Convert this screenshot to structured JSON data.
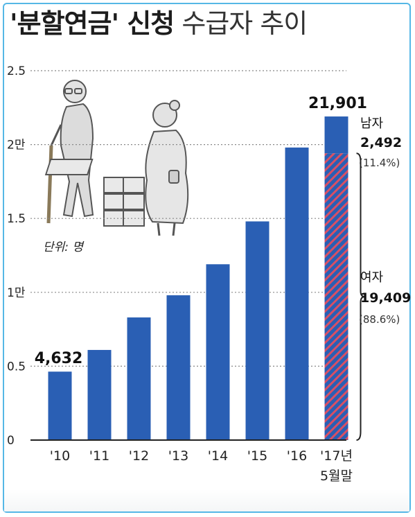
{
  "title": {
    "bold_text": "'분할연금' 신청",
    "light_text": "수급자 추이"
  },
  "unit_label": "단위: 명",
  "chart_data": {
    "type": "bar",
    "title": "'분할연금' 신청 수급자 추이",
    "categories": [
      "'10",
      "'11",
      "'12",
      "'13",
      "'14",
      "'15",
      "'16",
      "'17년"
    ],
    "category_sublabels": [
      "",
      "",
      "",
      "",
      "",
      "",
      "",
      "5월말"
    ],
    "values": [
      4632,
      6100,
      8300,
      9800,
      11900,
      14800,
      19800,
      21901
    ],
    "yticks": [
      "0",
      "0.5",
      "1만",
      "1.5",
      "2만",
      "2.5"
    ],
    "ylim": [
      0,
      25000
    ],
    "grid": true,
    "data_labels": [
      {
        "index": 0,
        "text": "4,632"
      },
      {
        "index": 7,
        "text": "21,901"
      }
    ],
    "breakdown_2017": [
      {
        "name": "남자",
        "value": 2492,
        "value_text": "2,492",
        "share": "(11.4%)"
      },
      {
        "name": "여자",
        "value": 19409,
        "value_text": "19,409",
        "share": "(88.6%)"
      }
    ],
    "colors": {
      "bar": "#2a5fb4",
      "female_stripe_a": "#2a5fb4",
      "female_stripe_b": "#d94f64"
    }
  }
}
